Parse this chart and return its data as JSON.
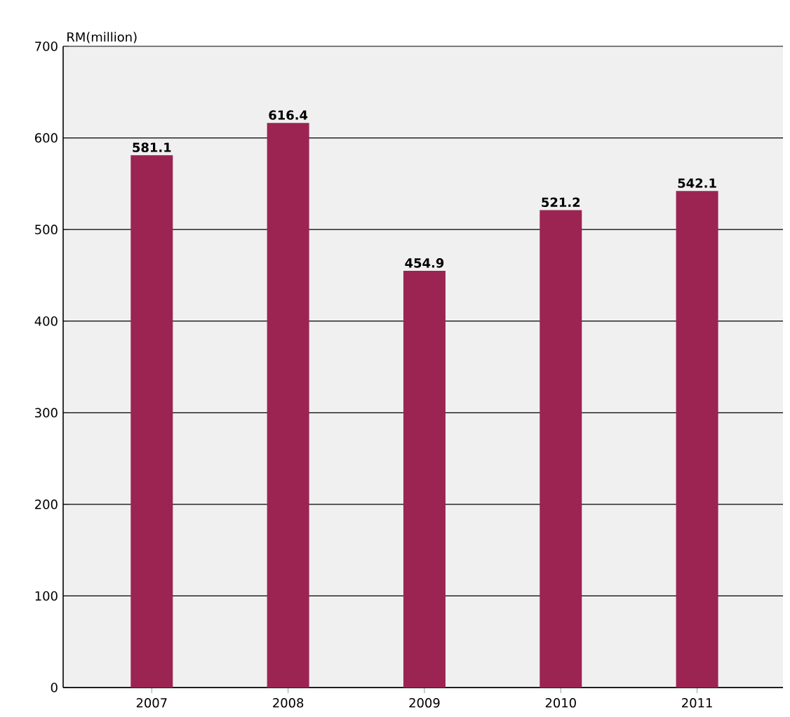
{
  "chart_data": {
    "type": "bar",
    "ylabel": "RM(million)",
    "categories": [
      "2007",
      "2008",
      "2009",
      "2010",
      "2011"
    ],
    "values": [
      581.1,
      616.4,
      454.9,
      521.2,
      542.1
    ],
    "color": "#9b2452",
    "ylim": [
      0,
      700
    ],
    "yticks": [
      0,
      100,
      200,
      300,
      400,
      500,
      600,
      700
    ],
    "grid": "y",
    "data_labels": true
  }
}
